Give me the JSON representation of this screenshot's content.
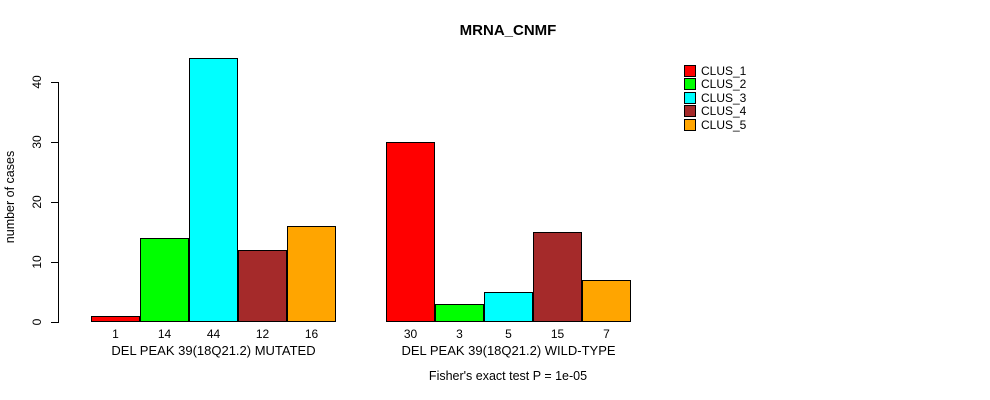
{
  "title": "MRNA_CNMF",
  "footnote": "Fisher's exact test P = 1e-05",
  "chart_data": {
    "type": "bar",
    "title": "MRNA_CNMF",
    "xlabel": "",
    "ylabel": "number of cases",
    "categories": [
      "DEL PEAK 39(18Q21.2) MUTATED",
      "DEL PEAK 39(18Q21.2) WILD-TYPE"
    ],
    "series": [
      {
        "name": "CLUS_1",
        "color": "#FF0000",
        "values": [
          1,
          30
        ]
      },
      {
        "name": "CLUS_2",
        "color": "#00FF00",
        "values": [
          14,
          3
        ]
      },
      {
        "name": "CLUS_3",
        "color": "#00FFFF",
        "values": [
          44,
          5
        ]
      },
      {
        "name": "CLUS_4",
        "color": "#A52A2A",
        "values": [
          12,
          15
        ]
      },
      {
        "name": "CLUS_5",
        "color": "#FFA500",
        "values": [
          16,
          7
        ]
      }
    ],
    "yticks": [
      0,
      10,
      20,
      30,
      40
    ],
    "ylim": [
      0,
      44
    ],
    "bar_value_labels": true,
    "grid": false,
    "legend_position": "right",
    "annotation": "Fisher's exact test P = 1e-05"
  },
  "legend": {
    "items": [
      {
        "label": "CLUS_1",
        "color": "#FF0000"
      },
      {
        "label": "CLUS_2",
        "color": "#00FF00"
      },
      {
        "label": "CLUS_3",
        "color": "#00FFFF"
      },
      {
        "label": "CLUS_4",
        "color": "#A52A2A"
      },
      {
        "label": "CLUS_5",
        "color": "#FFA500"
      }
    ]
  }
}
